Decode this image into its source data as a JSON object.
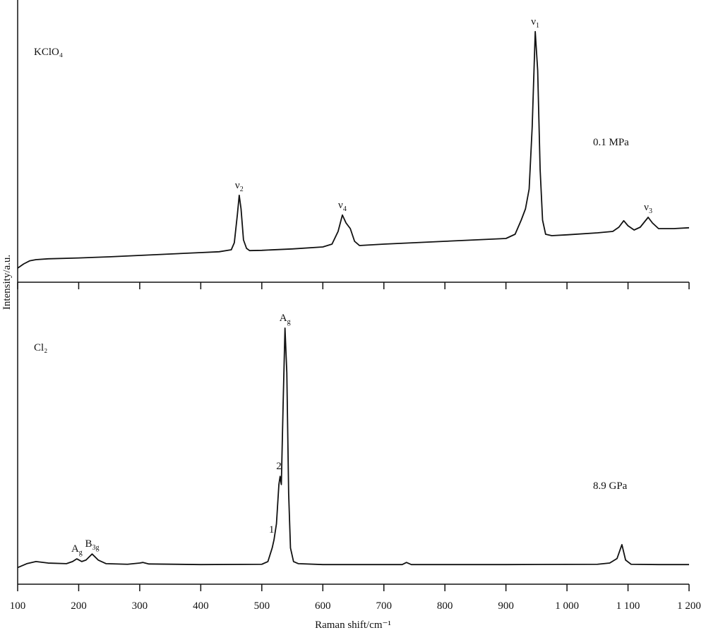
{
  "chart_data": {
    "type": "line",
    "x_label": "Raman shift/cm⁻¹",
    "y_label": "Intensity/a.u.",
    "xlim": [
      100,
      1200
    ],
    "xticks": [
      100,
      200,
      300,
      400,
      500,
      600,
      700,
      800,
      900,
      {
        "value": 1000,
        "label": "1 000"
      },
      {
        "value": 1100,
        "label": "1 100"
      },
      {
        "value": 1200,
        "label": "1 200"
      }
    ],
    "color": "#111111",
    "panels": [
      {
        "label": "KClO₄",
        "condition": "0.1 MPa",
        "ylim": [
          0,
          100
        ],
        "x": [
          100,
          110,
          120,
          130,
          150,
          200,
          250,
          300,
          350,
          400,
          430,
          450,
          455,
          460,
          463,
          466,
          470,
          475,
          480,
          500,
          550,
          600,
          615,
          625,
          632,
          638,
          645,
          652,
          660,
          700,
          750,
          800,
          850,
          900,
          915,
          925,
          932,
          938,
          943,
          948,
          952,
          956,
          960,
          965,
          975,
          1000,
          1050,
          1075,
          1085,
          1093,
          1100,
          1110,
          1120,
          1133,
          1140,
          1150,
          1175,
          1200
        ],
        "values": [
          5,
          6.5,
          7.6,
          8,
          8.3,
          8.6,
          9,
          9.5,
          10,
          10.5,
          10.8,
          11.5,
          14,
          24,
          30.8,
          26,
          15,
          12,
          11.2,
          11.3,
          11.8,
          12.5,
          13.5,
          18,
          23.8,
          21,
          19,
          14.5,
          13,
          13.5,
          14,
          14.5,
          15,
          15.5,
          17,
          22,
          26,
          33,
          55,
          88.8,
          75,
          40,
          22,
          17,
          16.5,
          16.8,
          17.5,
          18,
          19.5,
          21.8,
          20,
          18.5,
          19.5,
          23,
          21,
          19,
          19,
          19.3
        ],
        "annotations": [
          {
            "x": 463,
            "text": "ν",
            "sub": "2"
          },
          {
            "x": 632,
            "text": "ν",
            "sub": "4"
          },
          {
            "x": 948,
            "text": "ν",
            "sub": "1"
          },
          {
            "x": 1133,
            "text": "ν",
            "sub": "3"
          }
        ]
      },
      {
        "label": "Cl₂",
        "condition": "8.9 GPa",
        "ylim": [
          0,
          100
        ],
        "x": [
          100,
          115,
          130,
          150,
          180,
          190,
          197,
          205,
          212,
          222,
          232,
          245,
          280,
          300,
          305,
          315,
          400,
          500,
          510,
          517,
          520,
          524,
          528,
          530,
          532,
          535,
          538,
          541,
          544,
          547,
          552,
          560,
          600,
          700,
          730,
          737,
          745,
          900,
          1050,
          1070,
          1082,
          1090,
          1096,
          1105,
          1150,
          1200
        ],
        "values": [
          5.5,
          6.8,
          7.5,
          7,
          6.8,
          7.5,
          8.4,
          7.5,
          8,
          10,
          8,
          6.8,
          6.6,
          7,
          7.2,
          6.7,
          6.5,
          6.6,
          7.5,
          12,
          14.7,
          20,
          33,
          35.7,
          33,
          60,
          84.8,
          70,
          30,
          12,
          7.5,
          6.8,
          6.5,
          6.5,
          6.5,
          7.2,
          6.5,
          6.5,
          6.6,
          7,
          8.5,
          13.1,
          8,
          6.6,
          6.5,
          6.5
        ],
        "annotations": [
          {
            "x": 197,
            "text": "A",
            "sub": "g"
          },
          {
            "x": 222,
            "text": "B",
            "sub": "3g"
          },
          {
            "x": 516,
            "text": "1"
          },
          {
            "x": 528,
            "text": "2"
          },
          {
            "x": 538,
            "text": "A",
            "sub": "g"
          }
        ]
      }
    ]
  }
}
